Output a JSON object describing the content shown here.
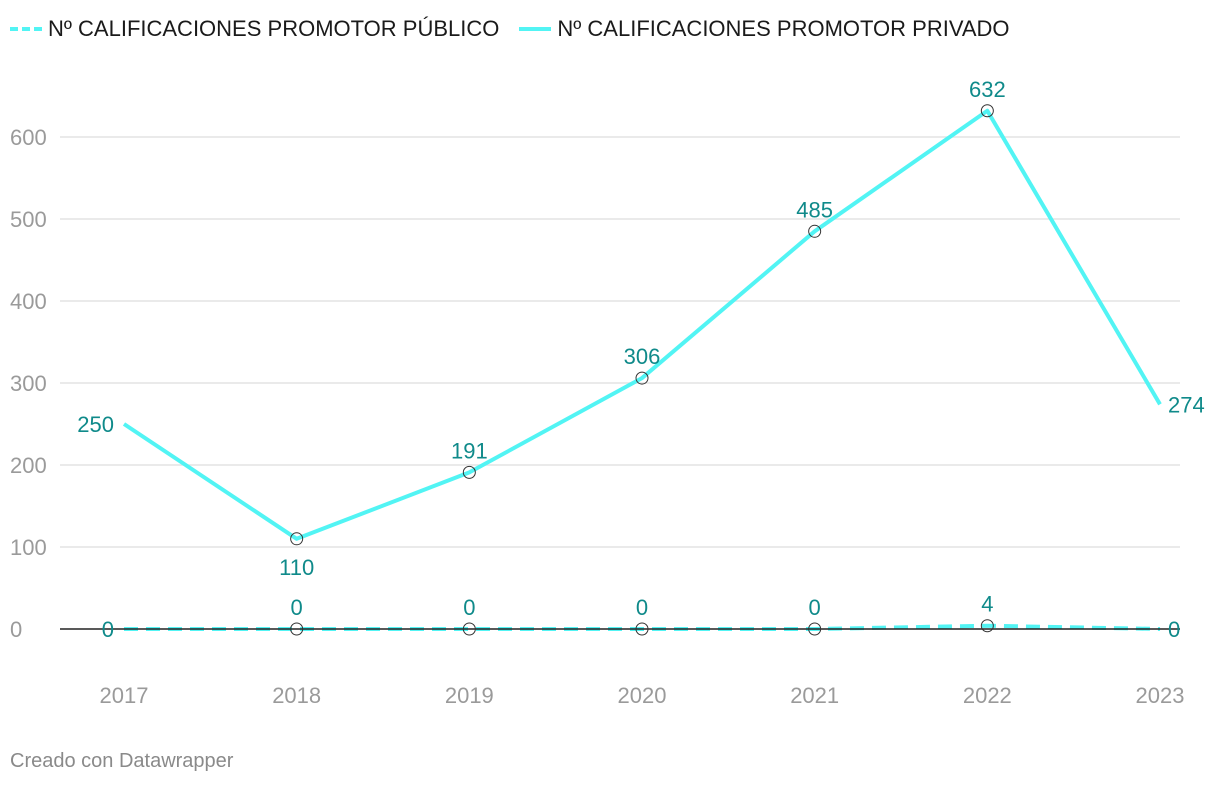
{
  "chart_data": {
    "type": "line",
    "categories": [
      "2017",
      "2018",
      "2019",
      "2020",
      "2021",
      "2022",
      "2023"
    ],
    "series": [
      {
        "name": "Nº CALIFICACIONES PROMOTOR PÚBLICO",
        "values": [
          0,
          0,
          0,
          0,
          0,
          4,
          0
        ],
        "color": "#52f4f4",
        "style": "dashed"
      },
      {
        "name": "Nº CALIFICACIONES PROMOTOR PRIVADO",
        "values": [
          250,
          110,
          191,
          306,
          485,
          632,
          274
        ],
        "color": "#52f4f4",
        "style": "solid"
      }
    ],
    "y_ticks": [
      0,
      100,
      200,
      300,
      400,
      500,
      600
    ],
    "ylim": [
      0,
      680
    ],
    "grid": true,
    "legend_position": "top-left",
    "label_color": "#0f8a8a"
  },
  "footer": {
    "text": "Creado con Datawrapper"
  }
}
